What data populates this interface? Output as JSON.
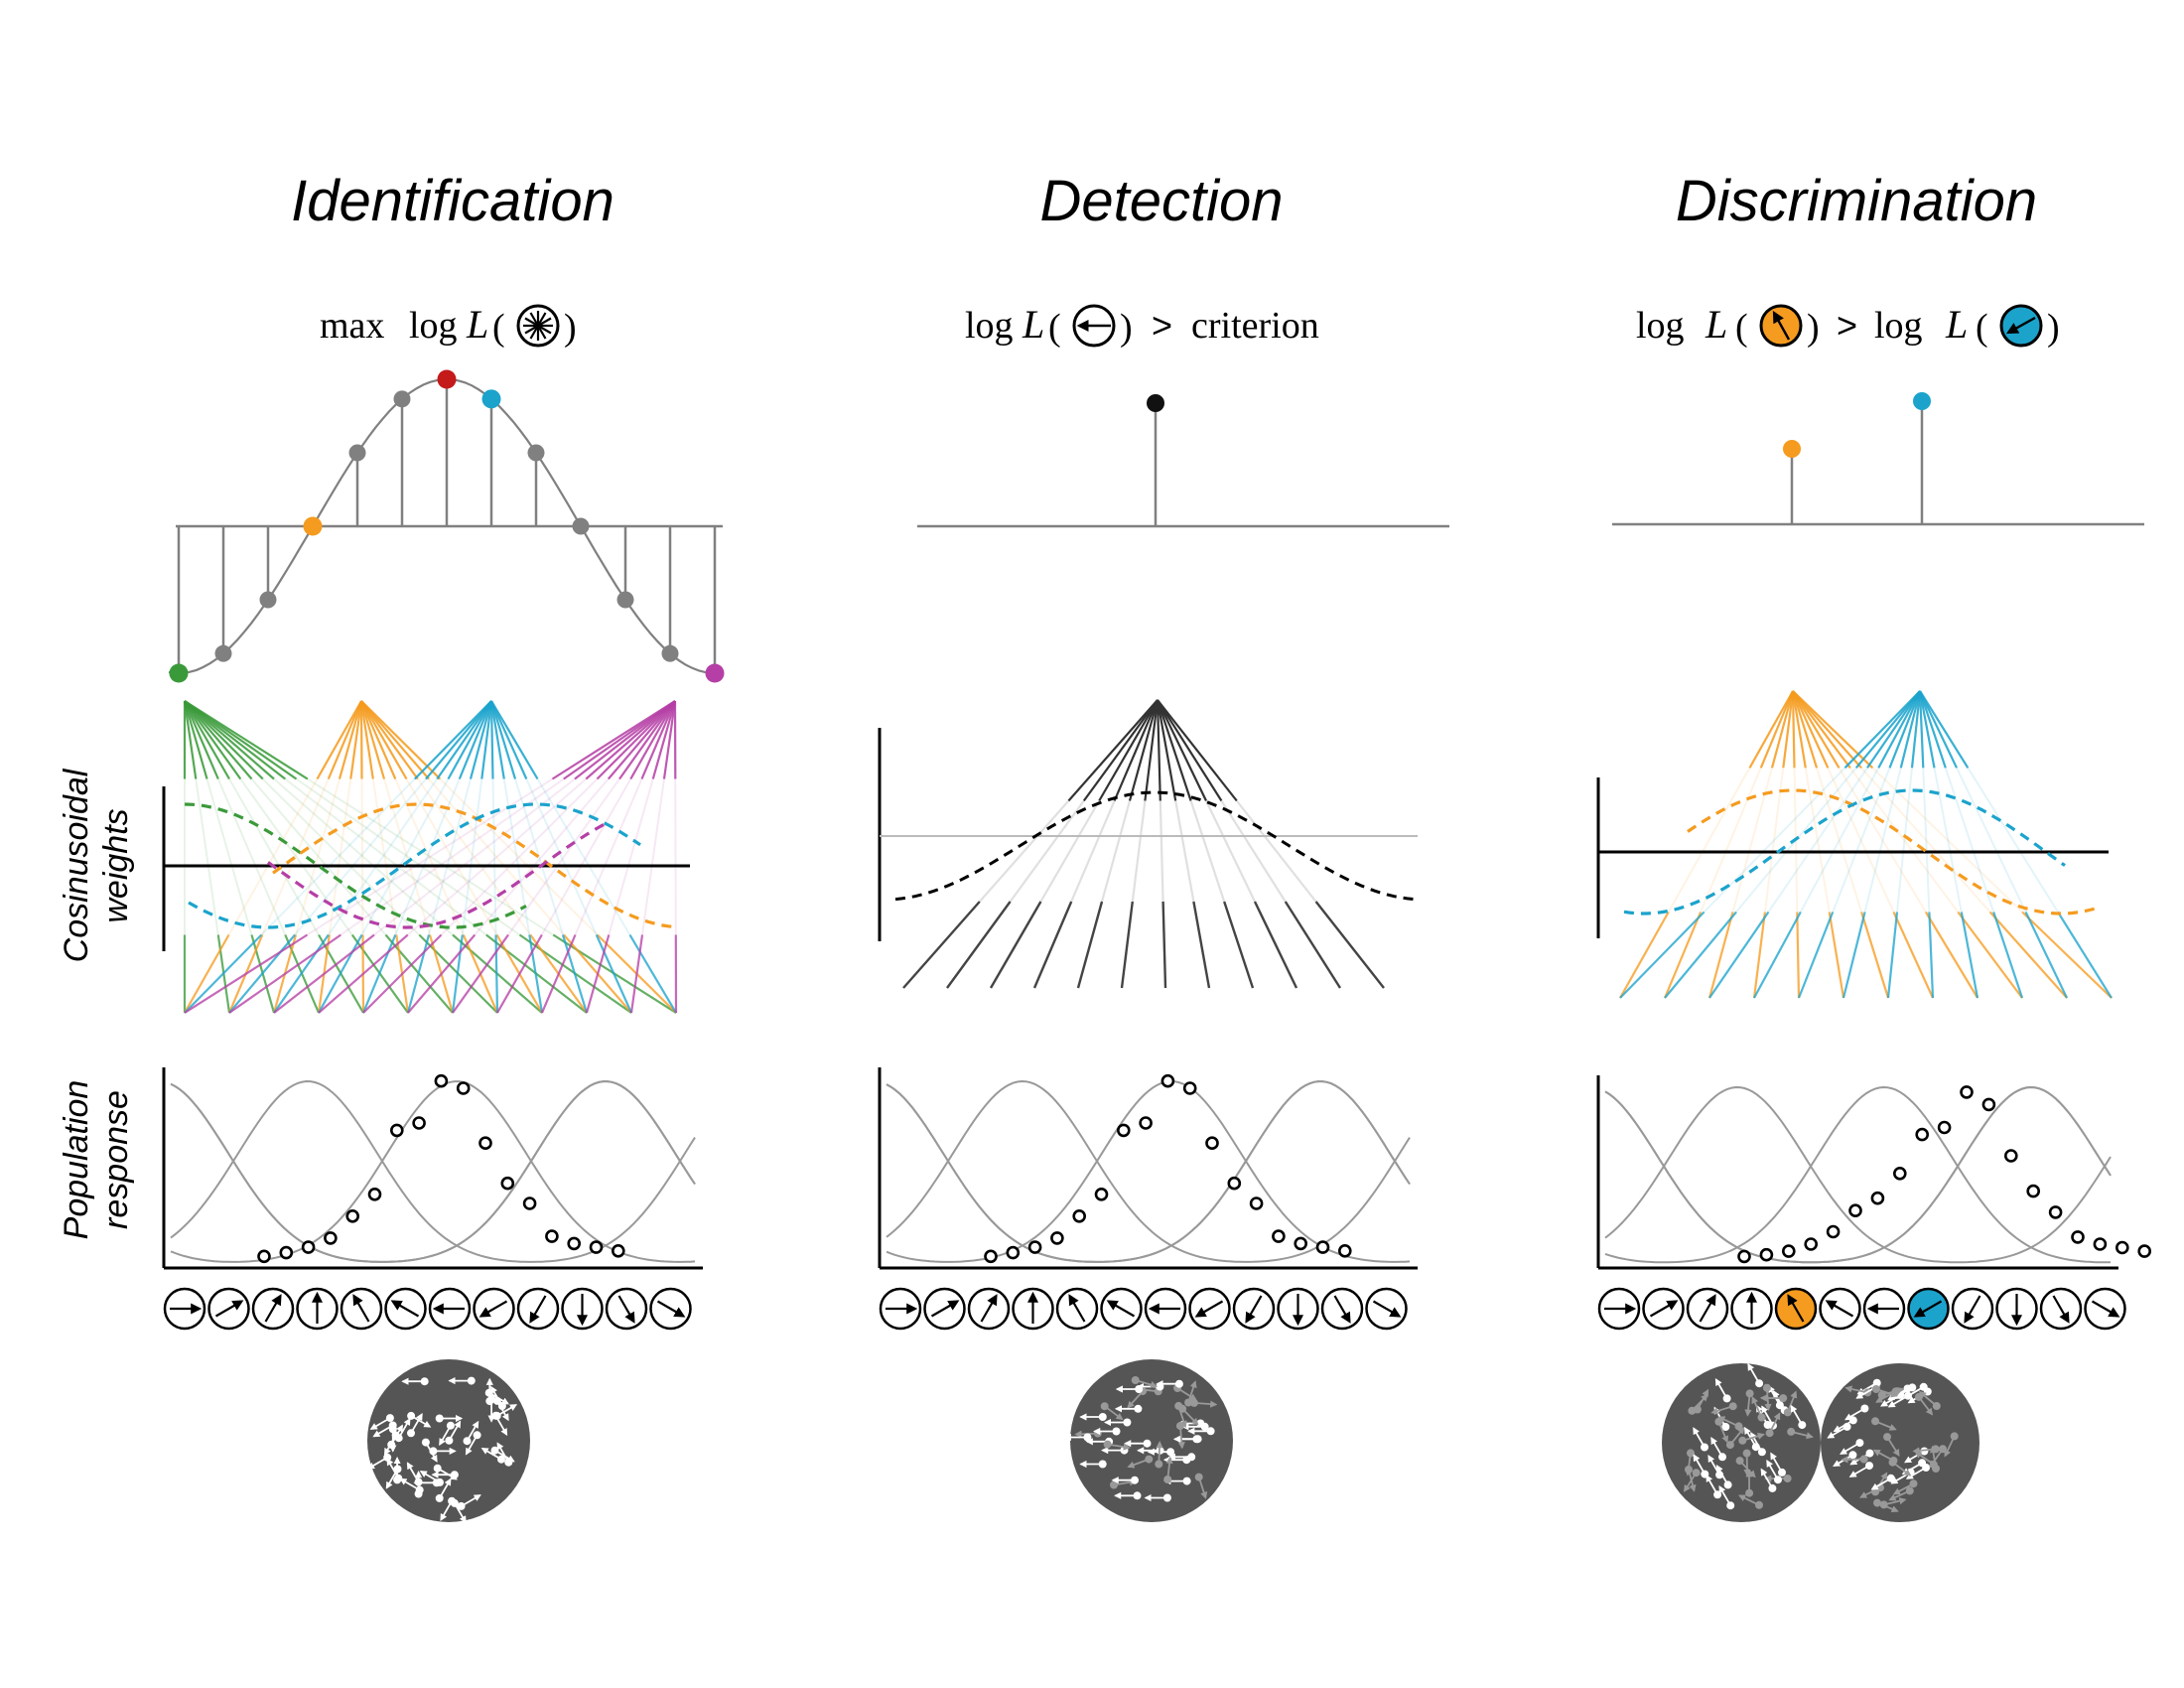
{
  "panels": {
    "identification": {
      "title": "Identification",
      "formula": {
        "prefix": "max",
        "log": "log",
        "L": "L"
      }
    },
    "detection": {
      "title": "Detection",
      "formula": {
        "log": "log",
        "L": "L",
        "gt": ">",
        "rhs": "criterion"
      }
    },
    "discrimination": {
      "title": "Discrimination",
      "formula": {
        "log1": "log",
        "L1": "L",
        "gt": ">",
        "log2": "log",
        "L2": "L"
      }
    }
  },
  "row_labels": {
    "weights": [
      "Cosinusoidal",
      "weights"
    ],
    "response": [
      "Population",
      "response"
    ]
  },
  "colors": {
    "green": "#3a9a3a",
    "orange": "#f59b1f",
    "cyan": "#1ba3cc",
    "magenta": "#b53fa6",
    "red": "#c41a1a",
    "gray": "#808080",
    "dark_disk": "#555555"
  },
  "directions_deg": [
    0,
    30,
    60,
    90,
    120,
    150,
    180,
    210,
    240,
    270,
    300,
    330
  ],
  "identification_loglik": [
    -1.0,
    -0.866,
    -0.5,
    0,
    0.5,
    0.866,
    1.0,
    0.866,
    0.5,
    0,
    -0.5,
    -0.866,
    -1.0
  ],
  "population_response": {
    "identification": [
      0.02,
      0.04,
      0.07,
      0.12,
      0.24,
      0.36,
      0.71,
      0.75,
      0.98,
      0.94,
      0.64,
      0.42,
      0.31,
      0.13,
      0.09,
      0.07,
      0.05
    ],
    "detection": [
      0.02,
      0.04,
      0.07,
      0.12,
      0.24,
      0.36,
      0.71,
      0.75,
      0.98,
      0.94,
      0.64,
      0.42,
      0.31,
      0.13,
      0.09,
      0.07,
      0.05
    ],
    "discrimination": [
      0.02,
      0.03,
      0.05,
      0.09,
      0.16,
      0.28,
      0.35,
      0.49,
      0.71,
      0.75,
      0.95,
      0.88,
      0.59,
      0.39,
      0.27,
      0.13,
      0.09,
      0.07,
      0.05
    ]
  }
}
